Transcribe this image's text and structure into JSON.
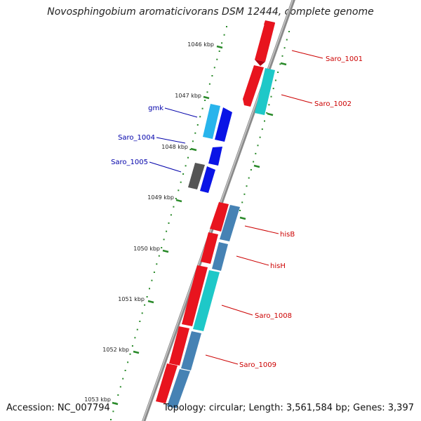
{
  "header": {
    "title": "Novosphingobium aromaticivorans DSM 12444, complete genome"
  },
  "footer": {
    "accession": "Accession: NC_007794",
    "topology": "Topology: circular; Length: 3,561,584 bp; Genes: 3,397"
  },
  "axis": {
    "ticks": [
      "1046 kbp",
      "1047 kbp",
      "1048 kbp",
      "1049 kbp",
      "1050 kbp",
      "1051 kbp",
      "1052 kbp",
      "1053 kbp"
    ]
  },
  "genes": {
    "right": [
      "Saro_1001",
      "Saro_1002",
      "hisB",
      "hisH",
      "Saro_1008",
      "Saro_1009"
    ],
    "left": [
      "gmk",
      "Saro_1004",
      "Saro_1005"
    ]
  },
  "colors": {
    "red": "#e8141e",
    "cyan": "#1ec8c8",
    "lightblue": "#28b4ec",
    "blue": "#0a14e6",
    "steel": "#4682b4",
    "gray": "#555555",
    "dots": "#2a8a2a",
    "label_red": "#cc0000",
    "label_blue": "#0000aa",
    "backbone": "#888888"
  }
}
